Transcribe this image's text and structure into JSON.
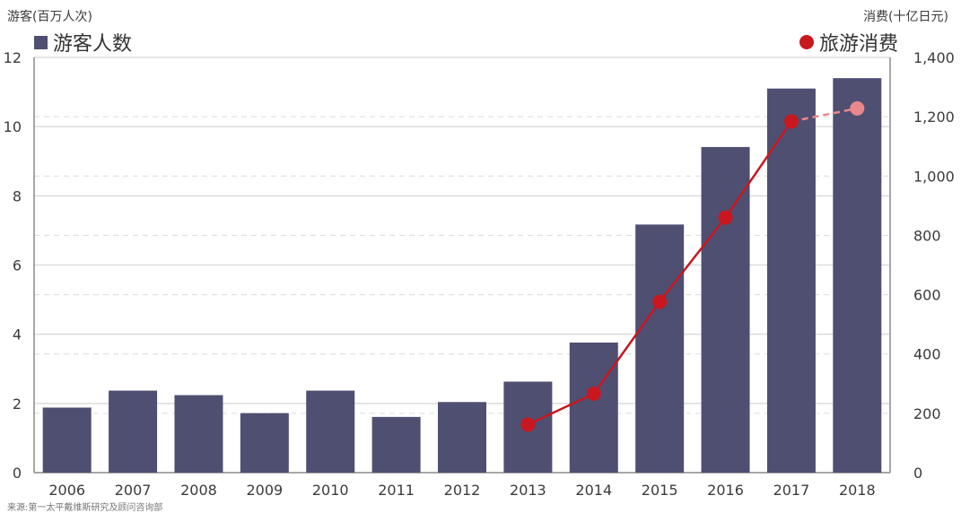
{
  "left_axis_title": "游客(百万人次)",
  "right_axis_title": "消费(十亿日元)",
  "legend": {
    "bars_label": "游客人数",
    "line_label": "旅游消费"
  },
  "source": "来源:第一太平戴维斯研究及顾问咨询部",
  "colors": {
    "bar": "#4f4f72",
    "line": "#c8171f",
    "line_estimate": "#e8888c",
    "grid": "#dcdcdc",
    "axis": "#8a8a8a",
    "text": "#3b3b3b"
  },
  "chart_data": {
    "type": "bar",
    "categories": [
      "2006",
      "2007",
      "2008",
      "2009",
      "2010",
      "2011",
      "2012",
      "2013",
      "2014",
      "2015",
      "2016",
      "2017",
      "2018"
    ],
    "series": [
      {
        "name": "游客人数",
        "type": "bar",
        "axis": "left",
        "values": [
          1.88,
          2.37,
          2.24,
          1.72,
          2.37,
          1.61,
          2.04,
          2.63,
          3.76,
          7.17,
          9.41,
          11.1,
          11.4
        ]
      },
      {
        "name": "旅游消费",
        "type": "line",
        "axis": "right",
        "values": [
          null,
          null,
          null,
          null,
          null,
          null,
          null,
          162,
          266,
          576,
          860,
          1184,
          1228
        ],
        "estimated_from_index": 12
      }
    ],
    "y_left": {
      "min": 0,
      "max": 12,
      "ticks": [
        "0",
        "2",
        "4",
        "6",
        "8",
        "10",
        "12"
      ]
    },
    "y_right": {
      "min": 0,
      "max": 1400,
      "ticks": [
        "0",
        "200",
        "400",
        "600",
        "800",
        "1,000",
        "1,200",
        "1,400"
      ]
    },
    "grid": true
  }
}
